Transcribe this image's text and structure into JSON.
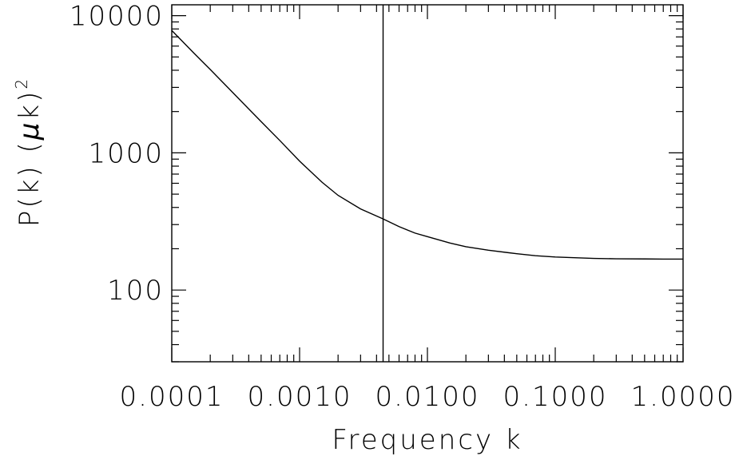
{
  "chart_data": {
    "type": "line",
    "xlabel": "Frequency k",
    "ylabel_main": "P(k)  (",
    "ylabel_mu": "μ",
    "ylabel_k": "k)",
    "ylabel_exp": "2",
    "xscale": "log",
    "yscale": "log",
    "xlim": [
      0.0001,
      1.0
    ],
    "ylim": [
      30,
      12000
    ],
    "x_ticks": [
      {
        "value": 0.0001,
        "label": "0.0001"
      },
      {
        "value": 0.001,
        "label": "0.0010"
      },
      {
        "value": 0.01,
        "label": "0.0100"
      },
      {
        "value": 0.1,
        "label": "0.1000"
      },
      {
        "value": 1.0,
        "label": "1.0000"
      }
    ],
    "y_ticks": [
      {
        "value": 100,
        "label": "100"
      },
      {
        "value": 1000,
        "label": "1000"
      },
      {
        "value": 10000,
        "label": "10000"
      }
    ],
    "vline_x": 0.0045,
    "series": [
      {
        "color": "#000000",
        "x": [
          0.0001,
          0.00015,
          0.0002,
          0.0003,
          0.0005,
          0.0007,
          0.001,
          0.0015,
          0.002,
          0.003,
          0.0045,
          0.006,
          0.008,
          0.01,
          0.015,
          0.02,
          0.03,
          0.05,
          0.07,
          0.1,
          0.2,
          0.3,
          0.5,
          0.7,
          1.0
        ],
        "y": [
          7800,
          5300,
          4050,
          2750,
          1690,
          1230,
          870,
          610,
          490,
          390,
          330,
          290,
          260,
          245,
          220,
          207,
          195,
          184,
          178,
          174,
          170,
          169,
          168.5,
          168,
          168
        ]
      }
    ]
  }
}
